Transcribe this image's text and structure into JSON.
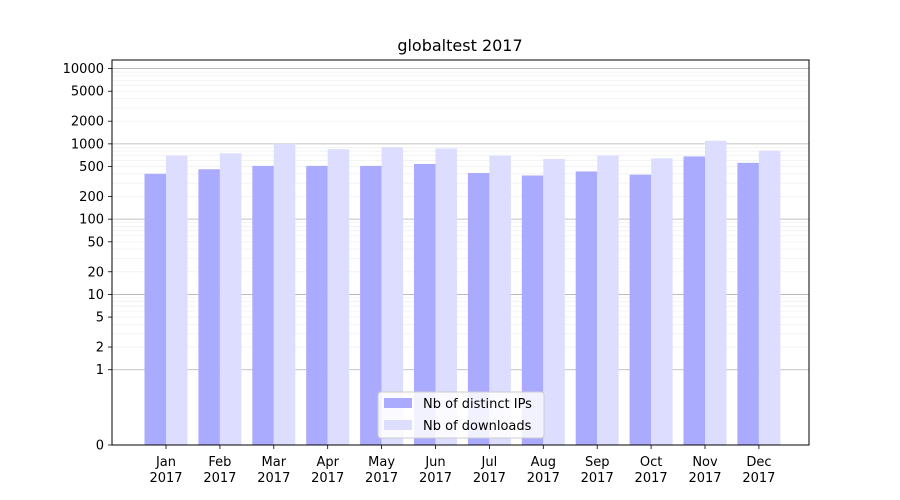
{
  "chart_data": {
    "type": "bar",
    "title": "globaltest 2017",
    "xlabel": "",
    "ylabel": "",
    "yscale": "symlog",
    "ylim": [
      0,
      13000
    ],
    "y_ticks": [
      "0",
      "1",
      "2",
      "5",
      "10",
      "20",
      "50",
      "100",
      "200",
      "500",
      "1000",
      "2000",
      "5000",
      "10000"
    ],
    "y_tick_values": [
      0,
      1,
      2,
      5,
      10,
      20,
      50,
      100,
      200,
      500,
      1000,
      2000,
      5000,
      10000
    ],
    "grid": true,
    "legend_position": "bottom-center",
    "categories": [
      "Jan\n2017",
      "Feb\n2017",
      "Mar\n2017",
      "Apr\n2017",
      "May\n2017",
      "Jun\n2017",
      "Jul\n2017",
      "Aug\n2017",
      "Sep\n2017",
      "Oct\n2017",
      "Nov\n2017",
      "Dec\n2017"
    ],
    "series": [
      {
        "name": "Nb of distinct IPs",
        "color": "#aaaaff",
        "values": [
          400,
          460,
          510,
          510,
          510,
          540,
          410,
          380,
          430,
          390,
          680,
          560
        ]
      },
      {
        "name": "Nb of downloads",
        "color": "#ddddff",
        "values": [
          700,
          750,
          1000,
          850,
          900,
          870,
          700,
          630,
          700,
          640,
          1100,
          810
        ]
      }
    ]
  }
}
